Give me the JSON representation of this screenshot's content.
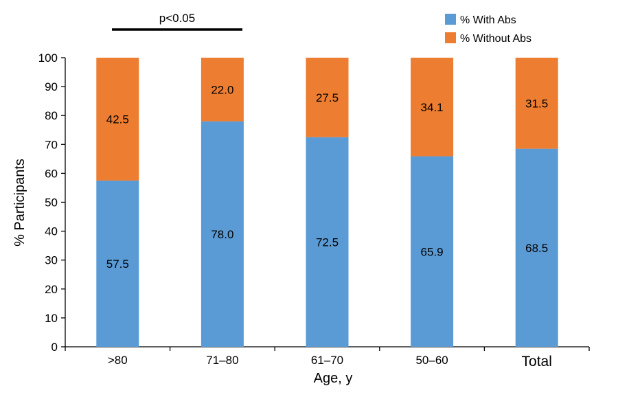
{
  "chart_data": {
    "type": "bar",
    "stacked": true,
    "categories": [
      ">80",
      "71–80",
      "61–70",
      "50–60",
      "Total"
    ],
    "series": [
      {
        "name": "% With Abs",
        "color": "#5b9bd5",
        "values": [
          57.5,
          78.0,
          72.5,
          65.9,
          68.5
        ]
      },
      {
        "name": "% Without Abs",
        "color": "#ed7d31",
        "values": [
          42.5,
          22.0,
          27.5,
          34.1,
          31.5
        ]
      }
    ],
    "data_labels": [
      [
        "57.5",
        "78.0",
        "72.5",
        "65.9",
        "68.5"
      ],
      [
        "42.5",
        "22.0",
        "27.5",
        "34.1",
        "31.5"
      ]
    ],
    "xlabel": "Age, y",
    "ylabel": "% Participants",
    "ylim": [
      0,
      100
    ],
    "yticks": [
      0,
      10,
      20,
      30,
      40,
      50,
      60,
      70,
      80,
      90,
      100
    ],
    "grid": false,
    "legend_position": "top-right",
    "annotation": {
      "text": "p<0.05",
      "spans": [
        ">80",
        "71–80"
      ]
    }
  }
}
